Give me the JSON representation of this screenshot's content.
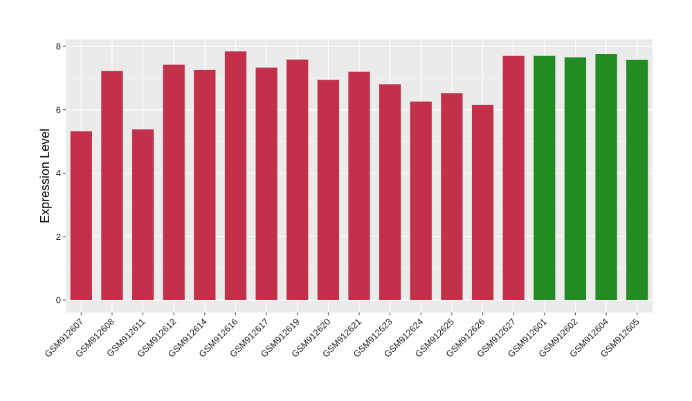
{
  "chart_data": {
    "type": "bar",
    "title": "",
    "xlabel": "",
    "ylabel": "Expression Level",
    "ylim": [
      0,
      8.3
    ],
    "yticks": [
      0,
      2,
      4,
      6,
      8
    ],
    "grid": true,
    "categories": [
      "GSM912607",
      "GSM912608",
      "GSM912611",
      "GSM912612",
      "GSM912614",
      "GSM912616",
      "GSM912617",
      "GSM912619",
      "GSM912620",
      "GSM912621",
      "GSM912623",
      "GSM912624",
      "GSM912625",
      "GSM912626",
      "GSM912627",
      "GSM912601",
      "GSM912602",
      "GSM912604",
      "GSM912605"
    ],
    "values": [
      5.32,
      7.22,
      5.38,
      7.42,
      7.26,
      7.84,
      7.33,
      7.58,
      6.94,
      7.2,
      6.8,
      6.26,
      6.52,
      6.15,
      7.7,
      7.7,
      7.65,
      7.76,
      7.57
    ],
    "bar_colors": [
      "#c2304a",
      "#c2304a",
      "#c2304a",
      "#c2304a",
      "#c2304a",
      "#c2304a",
      "#c2304a",
      "#c2304a",
      "#c2304a",
      "#c2304a",
      "#c2304a",
      "#c2304a",
      "#c2304a",
      "#c2304a",
      "#c2304a",
      "#228b22",
      "#228b22",
      "#228b22",
      "#228b22"
    ],
    "panel_background": "#ebebeb",
    "grid_color": "#ffffff"
  }
}
